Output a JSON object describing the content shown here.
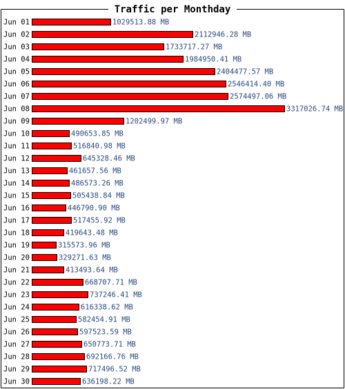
{
  "chart_data": {
    "type": "bar",
    "orientation": "horizontal",
    "title": "Traffic per Monthday",
    "xlabel": "",
    "ylabel": "",
    "unit": "MB",
    "categories": [
      "Jun 01",
      "Jun 02",
      "Jun 03",
      "Jun 04",
      "Jun 05",
      "Jun 06",
      "Jun 07",
      "Jun 08",
      "Jun 09",
      "Jun 10",
      "Jun 11",
      "Jun 12",
      "Jun 13",
      "Jun 14",
      "Jun 15",
      "Jun 16",
      "Jun 17",
      "Jun 18",
      "Jun 19",
      "Jun 20",
      "Jun 21",
      "Jun 22",
      "Jun 23",
      "Jun 24",
      "Jun 25",
      "Jun 26",
      "Jun 27",
      "Jun 28",
      "Jun 29",
      "Jun 30"
    ],
    "values": [
      1029513.88,
      2112946.28,
      1733717.27,
      1984950.41,
      2404477.57,
      2546414.4,
      2574497.06,
      3317026.74,
      1202499.97,
      490653.85,
      516840.98,
      645328.46,
      461657.56,
      486573.26,
      505438.84,
      446790.9,
      517455.92,
      419643.48,
      315573.96,
      329271.63,
      413493.64,
      668707.71,
      737246.41,
      616338.62,
      582454.91,
      597523.59,
      650773.71,
      692166.76,
      717496.52,
      636198.22
    ],
    "value_labels": [
      "1029513.88 MB",
      "2112946.28 MB",
      "1733717.27 MB",
      "1984950.41 MB",
      "2404477.57 MB",
      "2546414.40 MB",
      "2574497.06 MB",
      "3317026.74 MB",
      "1202499.97 MB",
      "490653.85 MB",
      "516840.98 MB",
      "645328.46 MB",
      "461657.56 MB",
      "486573.26 MB",
      "505438.84 MB",
      "446790.90 MB",
      "517455.92 MB",
      "419643.48 MB",
      "315573.96 MB",
      "329271.63 MB",
      "413493.64 MB",
      "668707.71 MB",
      "737246.41 MB",
      "616338.62 MB",
      "582454.91 MB",
      "597523.59 MB",
      "650773.71 MB",
      "692166.76 MB",
      "717496.52 MB",
      "636198.22 MB"
    ],
    "grid": false,
    "legend": "none",
    "colors": {
      "bar_fill": "#ff0000",
      "bar_stroke": "#000000",
      "value_text": "#2a4a7f",
      "label_text": "#000000",
      "frame": "#000000",
      "background": "#ffffff"
    }
  }
}
